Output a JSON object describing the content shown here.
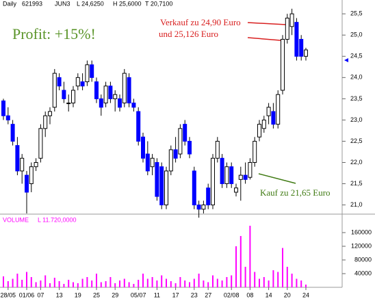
{
  "chart_data": {
    "type": "candlestick",
    "header": [
      "Daily",
      "621993",
      "JUN3",
      "L 24,6250",
      "H 25,6000",
      "T 20,7100"
    ],
    "volume_header": [
      "VOLUME",
      "L 11.720,0000"
    ],
    "annotations": [
      {
        "text": "Profit: +15%!",
        "color": "#5a9428"
      },
      {
        "text": "Verkauf zu 24,90 Euro",
        "color": "#d81e1e"
      },
      {
        "text": "und 25,126 Euro",
        "color": "#d81e1e"
      },
      {
        "text": "Kauf zu 21,65 Euro",
        "color": "#3f7a12"
      }
    ],
    "categories": [
      null,
      "28/05",
      null,
      null,
      null,
      "01/06",
      null,
      null,
      "07",
      null,
      null,
      null,
      "13",
      null,
      null,
      null,
      "19",
      null,
      null,
      null,
      "25",
      null,
      null,
      null,
      "29",
      null,
      null,
      null,
      null,
      "05/07",
      null,
      null,
      null,
      "11",
      null,
      null,
      null,
      "17",
      null,
      null,
      null,
      "23",
      null,
      null,
      "27",
      null,
      null,
      null,
      null,
      "02/08",
      null,
      null,
      null,
      "08",
      null,
      null,
      null,
      "14",
      null,
      null,
      null,
      "20",
      null,
      null,
      null,
      "24"
    ],
    "open": [
      23.45,
      23.1,
      22.9,
      22.4,
      21.8,
      21.7,
      21.5,
      21.9,
      22.1,
      22.8,
      23.1,
      23.3,
      24.0,
      23.7,
      23.4,
      23.4,
      23.8,
      23.9,
      23.9,
      24.3,
      23.9,
      23.5,
      23.4,
      23.8,
      23.5,
      23.5,
      23.4,
      24.0,
      23.4,
      23.2,
      22.6,
      22.2,
      21.9,
      22.0,
      21.9,
      21.0,
      21.8,
      22.3,
      22.2,
      22.9,
      22.5,
      21.8,
      21.0,
      20.9,
      21.4,
      21.0,
      22.1,
      22.1,
      21.5,
      21.9,
      21.3,
      21.6,
      21.7,
      21.65,
      22.0,
      22.6,
      22.8,
      23.1,
      23.2,
      22.9,
      23.7,
      24.9,
      25.2,
      25.3,
      24.9,
      24.5
    ],
    "high": [
      23.5,
      23.3,
      23.0,
      22.6,
      22.2,
      21.8,
      22.0,
      22.1,
      22.9,
      23.2,
      23.3,
      24.2,
      24.1,
      23.9,
      23.6,
      23.8,
      24.1,
      24.1,
      24.4,
      24.4,
      24.0,
      23.6,
      23.9,
      23.9,
      23.7,
      23.6,
      24.2,
      24.1,
      23.5,
      23.3,
      22.7,
      22.5,
      22.2,
      22.1,
      22.0,
      21.9,
      22.4,
      22.6,
      22.9,
      23.0,
      22.6,
      21.9,
      21.1,
      21.1,
      21.5,
      22.2,
      22.6,
      22.2,
      22.0,
      22.0,
      21.5,
      21.9,
      22.0,
      22.1,
      22.6,
      23.0,
      23.1,
      23.4,
      23.4,
      23.7,
      25.0,
      25.5,
      25.62,
      25.4,
      25.0,
      24.7
    ],
    "low": [
      23.0,
      22.9,
      22.4,
      21.7,
      21.5,
      20.8,
      21.3,
      21.8,
      22.0,
      22.6,
      22.9,
      23.2,
      23.7,
      23.4,
      23.2,
      23.3,
      23.7,
      23.7,
      23.8,
      23.9,
      23.4,
      23.1,
      23.3,
      23.4,
      23.2,
      23.2,
      23.3,
      23.3,
      23.2,
      22.4,
      22.0,
      21.7,
      21.7,
      21.1,
      20.9,
      20.9,
      21.7,
      22.0,
      22.1,
      22.4,
      22.1,
      20.9,
      20.7,
      20.8,
      20.9,
      20.9,
      22.0,
      21.4,
      21.4,
      21.4,
      21.2,
      21.1,
      21.5,
      21.6,
      21.9,
      22.5,
      22.7,
      22.9,
      22.8,
      22.8,
      23.6,
      24.8,
      25.0,
      24.4,
      24.4,
      24.4
    ],
    "close": [
      23.1,
      23.0,
      22.5,
      21.8,
      22.1,
      21.3,
      21.9,
      22.0,
      22.8,
      23.1,
      23.2,
      24.1,
      23.8,
      23.5,
      23.4,
      23.7,
      24.0,
      23.8,
      24.3,
      24.0,
      23.5,
      23.3,
      23.8,
      23.5,
      23.6,
      23.3,
      24.1,
      23.4,
      23.3,
      22.5,
      22.1,
      21.8,
      22.1,
      21.2,
      21.0,
      21.8,
      22.3,
      22.1,
      22.8,
      22.5,
      22.2,
      21.0,
      20.9,
      21.0,
      21.0,
      22.1,
      22.5,
      21.5,
      21.9,
      21.5,
      21.4,
      21.7,
      21.6,
      22.0,
      22.5,
      22.9,
      23.0,
      23.3,
      22.9,
      23.6,
      24.9,
      25.4,
      25.5,
      24.5,
      24.5,
      24.65
    ],
    "volume": [
      32000,
      18000,
      25000,
      40000,
      22000,
      45000,
      30000,
      15000,
      20000,
      35000,
      12000,
      28000,
      18000,
      10000,
      22000,
      15000,
      12000,
      25000,
      30000,
      20000,
      40000,
      15000,
      18000,
      30000,
      12000,
      20000,
      25000,
      15000,
      10000,
      22000,
      40000,
      25000,
      30000,
      20000,
      35000,
      25000,
      18000,
      12000,
      30000,
      20000,
      15000,
      25000,
      40000,
      20000,
      15000,
      35000,
      25000,
      20000,
      30000,
      35000,
      120000,
      150000,
      60000,
      180000,
      45000,
      25000,
      30000,
      20000,
      50000,
      45000,
      115000,
      60000,
      40000,
      25000,
      20000,
      8000
    ],
    "up_color": "#ffffff",
    "down_color": "#0000ff",
    "volume_color": "#ff00ff",
    "ylim": [
      20.8,
      25.6
    ],
    "yticks": [
      {
        "value": 21.0,
        "label": "21,0"
      },
      {
        "value": 21.5,
        "label": "21,5"
      },
      {
        "value": 22.0,
        "label": "22,0"
      },
      {
        "value": 22.5,
        "label": "22,5"
      },
      {
        "value": 23.0,
        "label": "23,0"
      },
      {
        "value": 23.5,
        "label": "23,5"
      },
      {
        "value": 24.0,
        "label": "24,0"
      },
      {
        "value": 24.5,
        "label": "24,5"
      },
      {
        "value": 25.0,
        "label": "25,0"
      },
      {
        "value": 25.5,
        "label": "25,5"
      }
    ],
    "volume_ylim": [
      0,
      210000
    ],
    "volume_yticks": [
      40000,
      80000,
      120000,
      160000
    ]
  }
}
